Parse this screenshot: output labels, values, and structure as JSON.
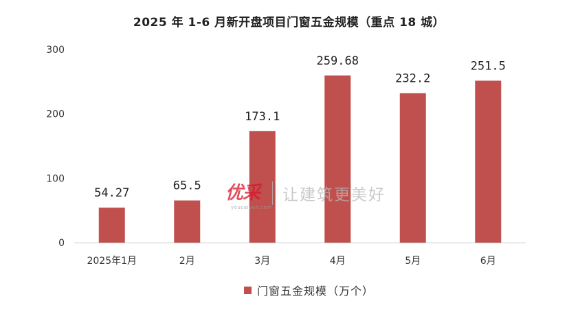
{
  "chart_data": {
    "type": "bar",
    "title": "2025 年 1-6 月新开盘项目门窗五金规模（重点 18 城）",
    "categories": [
      "2025年1月",
      "2月",
      "3月",
      "4月",
      "5月",
      "6月"
    ],
    "series": [
      {
        "name": "门窗五金规模（万个）",
        "values": [
          54.27,
          65.5,
          173.1,
          259.68,
          232.2,
          251.5
        ],
        "labels": [
          "54.27",
          "65.5",
          "173.1",
          "259.68",
          "232.2",
          "251.5"
        ]
      }
    ],
    "ylim": [
      0,
      300
    ],
    "yticks": [
      "0",
      "100",
      "200",
      "300"
    ],
    "ytick_values": [
      0,
      100,
      200,
      300
    ],
    "color": "#c0504d",
    "grid": false,
    "legend_position": "bottom"
  },
  "watermark": {
    "logo": "优采",
    "site": "youcaiyun.com",
    "slogan": "让建筑更美好",
    "logo_color": "#d9162b"
  }
}
